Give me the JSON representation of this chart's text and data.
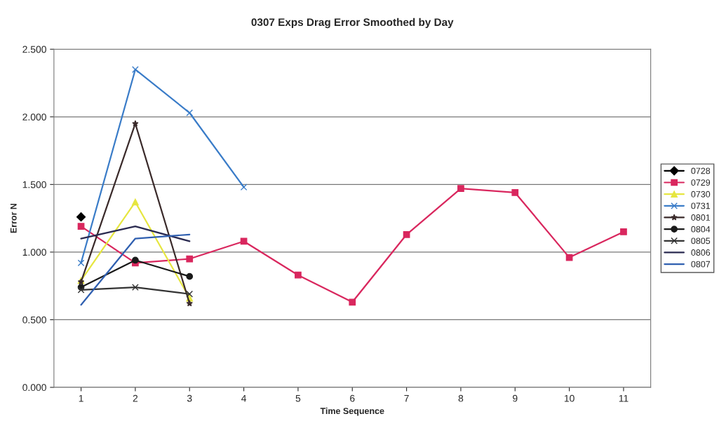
{
  "chart_data": {
    "type": "line",
    "title": "0307 Exps Drag Error Smoothed by Day",
    "xlabel": "Time Sequence",
    "ylabel": "Error N",
    "categories": [
      "1",
      "2",
      "3",
      "4",
      "5",
      "6",
      "7",
      "8",
      "9",
      "10",
      "11"
    ],
    "ylim": [
      0,
      2.5
    ],
    "yticks": [
      {
        "value": 0,
        "label": "0.000"
      },
      {
        "value": 0.5,
        "label": "0.500"
      },
      {
        "value": 1.0,
        "label": "1.000"
      },
      {
        "value": 1.5,
        "label": "1.500"
      },
      {
        "value": 2.0,
        "label": "2.000"
      },
      {
        "value": 2.5,
        "label": "2.500"
      }
    ],
    "grid": "y",
    "legend": "right",
    "series": [
      {
        "name": "0728",
        "color": "#000000",
        "marker": "diamond",
        "values": [
          1.26,
          null,
          null,
          null,
          null,
          null,
          null,
          null,
          null,
          null,
          null
        ]
      },
      {
        "name": "0729",
        "color": "#d9275e",
        "marker": "square",
        "values": [
          1.19,
          0.92,
          0.95,
          1.08,
          0.83,
          0.63,
          1.13,
          1.47,
          1.44,
          0.96,
          1.15
        ]
      },
      {
        "name": "0730",
        "color": "#e6e640",
        "marker": "triangle",
        "values": [
          0.79,
          1.37,
          0.66,
          null,
          null,
          null,
          null,
          null,
          null,
          null,
          null
        ]
      },
      {
        "name": "0731",
        "color": "#3a7cc8",
        "marker": "cross",
        "values": [
          0.92,
          2.35,
          2.03,
          1.48,
          null,
          null,
          null,
          null,
          null,
          null,
          null
        ]
      },
      {
        "name": "0801",
        "color": "#3a2a2a",
        "marker": "star",
        "values": [
          0.78,
          1.95,
          0.62,
          null,
          null,
          null,
          null,
          null,
          null,
          null,
          null
        ]
      },
      {
        "name": "0804",
        "color": "#1a1a1a",
        "marker": "circle",
        "values": [
          0.74,
          0.94,
          0.82,
          null,
          null,
          null,
          null,
          null,
          null,
          null,
          null
        ]
      },
      {
        "name": "0805",
        "color": "#333333",
        "marker": "cross",
        "values": [
          0.72,
          0.74,
          0.69,
          null,
          null,
          null,
          null,
          null,
          null,
          null,
          null
        ]
      },
      {
        "name": "0806",
        "color": "#2a2a50",
        "marker": "none",
        "values": [
          1.1,
          1.19,
          1.08,
          null,
          null,
          null,
          null,
          null,
          null,
          null,
          null
        ]
      },
      {
        "name": "0807",
        "color": "#2f5fb0",
        "marker": "none",
        "values": [
          0.61,
          1.1,
          1.13,
          null,
          null,
          null,
          null,
          null,
          null,
          null,
          null
        ]
      }
    ]
  }
}
